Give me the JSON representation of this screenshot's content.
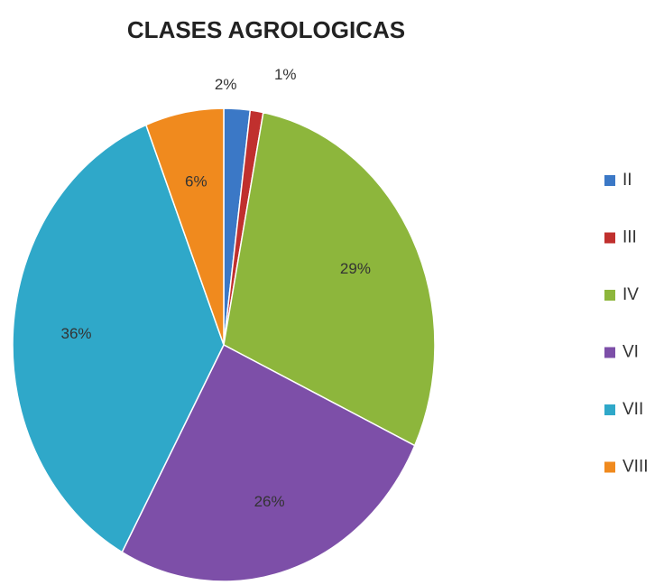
{
  "chart_data": {
    "type": "pie",
    "title": "CLASES AGROLOGICAS",
    "categories": [
      "II",
      "III",
      "IV",
      "VI",
      "VII",
      "VIII"
    ],
    "values": [
      2,
      1,
      29,
      26,
      36,
      6
    ],
    "value_labels": [
      "2%",
      "1%",
      "29%",
      "26%",
      "36%",
      "6%"
    ],
    "colors": [
      "#3b78c6",
      "#c0302e",
      "#8db63c",
      "#7d4fa8",
      "#2fa8c9",
      "#f08a1e"
    ],
    "legend": "right"
  }
}
